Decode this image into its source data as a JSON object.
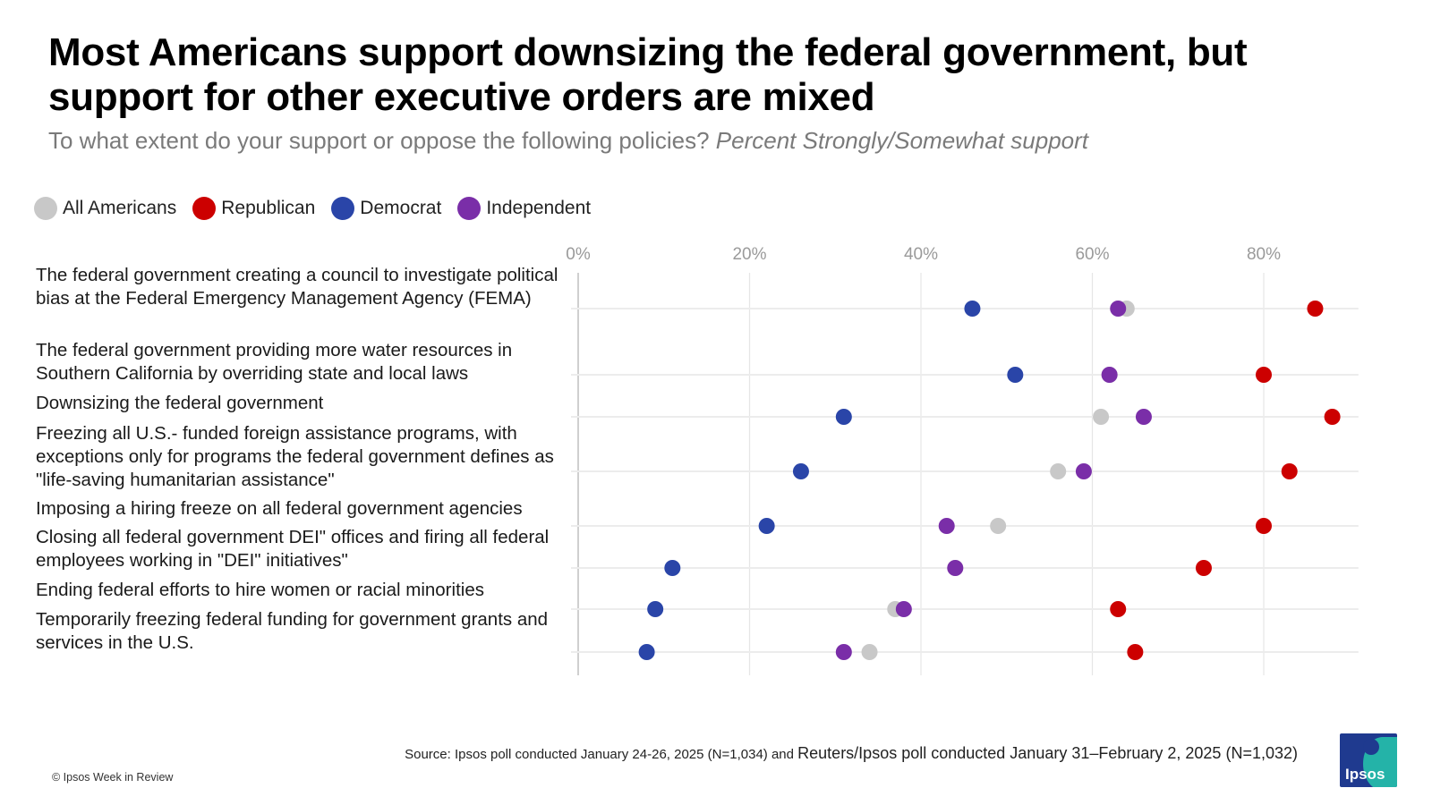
{
  "header": {
    "title": "Most Americans support downsizing the federal government, but support for other executive orders are mixed",
    "subtitle_plain": "To what extent do your support or oppose the following policies?",
    "subtitle_italic": "Percent Strongly/Somewhat support"
  },
  "legend": [
    {
      "label": "All Americans",
      "color": "#c8c8c8"
    },
    {
      "label": "Republican",
      "color": "#cc0000"
    },
    {
      "label": "Democrat",
      "color": "#2a45a8"
    },
    {
      "label": "Independent",
      "color": "#7a2ea8"
    }
  ],
  "chart_data": {
    "type": "scatter",
    "title": "Most Americans support downsizing the federal government, but support for other executive orders are mixed",
    "subtitle": "To what extent do your support or oppose the following policies? Percent Strongly/Somewhat support",
    "x_tick_labels": [
      "0%",
      "20%",
      "40%",
      "60%",
      "80%"
    ],
    "x_ticks": [
      0,
      20,
      40,
      60,
      80
    ],
    "xlim": [
      0,
      90
    ],
    "grid": true,
    "legend_position": "top-left",
    "categories": [
      "The federal government creating a council to investigate political bias at the Federal Emergency Management Agency (FEMA)",
      "The federal government providing more water resources in Southern California by overriding state and local laws",
      "Downsizing the federal government",
      "Freezing all U.S.- funded foreign assistance programs, with exceptions only for programs the federal government defines as \"life-saving humanitarian assistance\"",
      "Imposing a hiring freeze on all federal government agencies",
      "Closing all federal government DEI\" offices and firing all federal employees working in \"DEI\" initiatives\"",
      "Ending federal efforts to hire women or racial minorities",
      "Temporarily freezing federal funding for government grants and services in the U.S."
    ],
    "series": [
      {
        "name": "All Americans",
        "color": "#c8c8c8",
        "values": [
          64,
          62,
          61,
          56,
          49,
          44,
          37,
          34
        ]
      },
      {
        "name": "Republican",
        "color": "#cc0000",
        "values": [
          86,
          80,
          88,
          83,
          80,
          73,
          63,
          65
        ]
      },
      {
        "name": "Democrat",
        "color": "#2a45a8",
        "values": [
          46,
          51,
          31,
          26,
          22,
          11,
          9,
          8
        ]
      },
      {
        "name": "Independent",
        "color": "#7a2ea8",
        "values": [
          63,
          62,
          66,
          59,
          43,
          44,
          38,
          31
        ]
      }
    ]
  },
  "footer": {
    "source_prefix": "Source: Ipsos poll conducted January 24-26, 2025 (N=1,034) and",
    "source_suffix": "Reuters/Ipsos poll conducted January 31–February 2, 2025 (N=1,032)",
    "copyright": "© Ipsos Week in Review",
    "logo_text": "Ipsos"
  }
}
